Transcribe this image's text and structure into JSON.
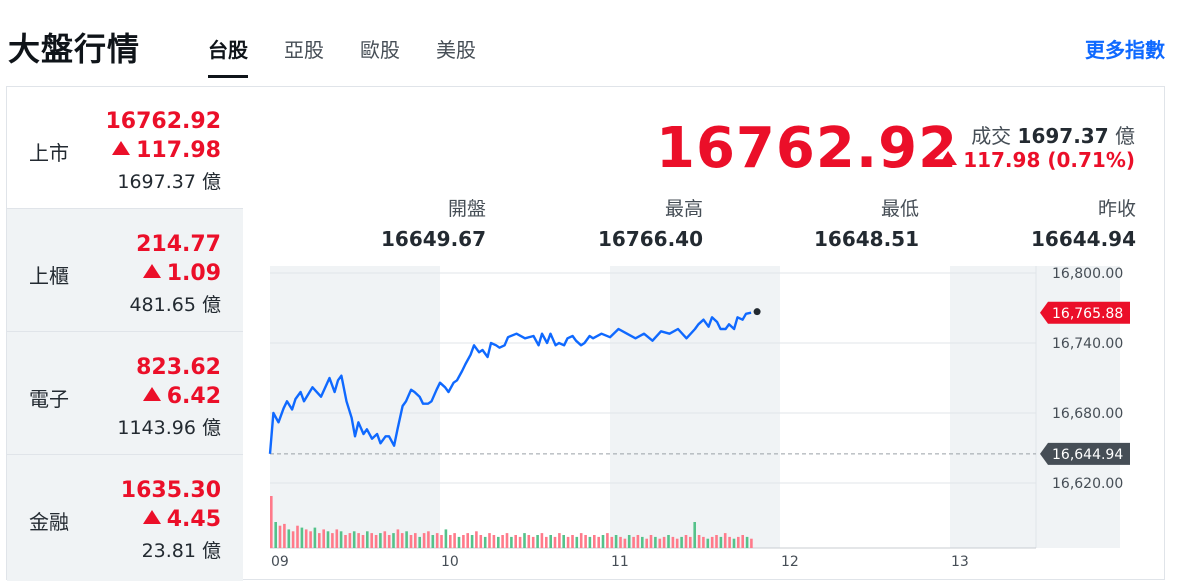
{
  "header": {
    "title": "大盤行情",
    "tabs": [
      "台股",
      "亞股",
      "歐股",
      "美股"
    ],
    "more_label": "更多指數"
  },
  "sidebar": {
    "items": [
      {
        "name": "上市",
        "price": "16762.92",
        "change": "117.98",
        "volume": "1697.37 億"
      },
      {
        "name": "上櫃",
        "price": "214.77",
        "change": "1.09",
        "volume": "481.65 億"
      },
      {
        "name": "電子",
        "price": "823.62",
        "change": "6.42",
        "volume": "1143.96 億"
      },
      {
        "name": "金融",
        "price": "1635.30",
        "change": "4.45",
        "volume": "23.81 億"
      }
    ]
  },
  "main": {
    "price": "16762.92",
    "volume_label": "成交",
    "volume_value": "1697.37",
    "volume_unit": "億",
    "change": "117.98 (0.71%)",
    "stats": [
      {
        "label": "開盤",
        "value": "16649.67"
      },
      {
        "label": "最高",
        "value": "16766.40"
      },
      {
        "label": "最低",
        "value": "16648.51"
      },
      {
        "label": "昨收",
        "value": "16644.94"
      }
    ]
  },
  "colors": {
    "up": "#eb0f29",
    "line": "#0f69ff",
    "prev_close_tag": "#464e56"
  },
  "chart_data": {
    "type": "line",
    "x_ticks": [
      "09",
      "10",
      "11",
      "12",
      "13"
    ],
    "y_ticks": [
      "16,800.00",
      "16,740.00",
      "16,680.00",
      "16,620.00"
    ],
    "ylim": [
      16600,
      16810
    ],
    "current_tag": "16,765.88",
    "prev_close_tag": "16,644.94",
    "current_value": 16765.88,
    "prev_close_value": 16644.94,
    "series": [
      {
        "x": [
          9.0,
          9.02,
          9.05,
          9.08,
          9.1,
          9.13,
          9.15,
          9.18,
          9.2,
          9.25,
          9.3,
          9.35,
          9.38,
          9.4,
          9.42,
          9.45,
          9.48,
          9.5,
          9.52,
          9.55,
          9.57,
          9.6,
          9.63,
          9.65,
          9.68,
          9.7,
          9.73,
          9.75,
          9.78,
          9.8,
          9.83,
          9.85,
          9.88,
          9.9,
          9.93,
          9.95,
          9.98,
          10.0,
          10.03,
          10.05,
          10.08,
          10.1,
          10.13,
          10.15,
          10.18,
          10.2,
          10.23,
          10.25,
          10.28,
          10.3,
          10.33,
          10.35,
          10.38,
          10.4,
          10.45,
          10.5,
          10.55,
          10.58,
          10.6,
          10.63,
          10.65,
          10.68,
          10.7,
          10.73,
          10.75,
          10.78,
          10.8,
          10.83,
          10.85,
          10.88,
          10.9,
          10.95,
          11.0,
          11.05,
          11.1,
          11.15,
          11.2,
          11.25,
          11.3,
          11.35,
          11.4,
          11.45,
          11.5,
          11.52,
          11.55,
          11.58,
          11.6,
          11.63,
          11.65,
          11.68,
          11.7,
          11.73,
          11.75,
          11.78,
          11.8,
          11.83
        ],
        "y": [
          16645,
          16680,
          16672,
          16684,
          16690,
          16683,
          16692,
          16698,
          16690,
          16702,
          16694,
          16710,
          16698,
          16708,
          16712,
          16690,
          16676,
          16660,
          16672,
          16662,
          16666,
          16658,
          16662,
          16654,
          16660,
          16660,
          16652,
          16666,
          16686,
          16690,
          16700,
          16698,
          16694,
          16688,
          16688,
          16690,
          16700,
          16706,
          16702,
          16698,
          16706,
          16708,
          16716,
          16722,
          16730,
          16738,
          16732,
          16734,
          16728,
          16740,
          16738,
          16736,
          16738,
          16745,
          16748,
          16744,
          16746,
          16738,
          16748,
          16740,
          16748,
          16738,
          16740,
          16738,
          16744,
          16746,
          16742,
          16738,
          16740,
          16746,
          16744,
          16748,
          16745,
          16752,
          16748,
          16744,
          16748,
          16742,
          16750,
          16748,
          16752,
          16744,
          16752,
          16756,
          16760,
          16754,
          16762,
          16758,
          16752,
          16752,
          16756,
          16752,
          16762,
          16760,
          16765,
          16766
        ]
      }
    ],
    "volume": [
      28,
      14,
      12,
      13,
      10,
      9,
      12,
      11,
      10,
      9,
      11,
      8,
      10,
      9,
      8,
      10,
      9,
      7,
      8,
      9,
      8,
      7,
      9,
      8,
      7,
      8,
      9,
      7,
      8,
      10,
      8,
      9,
      7,
      8,
      6,
      8,
      9,
      7,
      8,
      7,
      10,
      7,
      8,
      6,
      7,
      8,
      7,
      9,
      7,
      6,
      8,
      7,
      6,
      7,
      8,
      6,
      7,
      6,
      8,
      7,
      6,
      7,
      8,
      6,
      7,
      6,
      8,
      7,
      6,
      7,
      6,
      8,
      7,
      6,
      7,
      6,
      7,
      8,
      6,
      7,
      6,
      5,
      7,
      6,
      7,
      6,
      5,
      7,
      6,
      5,
      6,
      7,
      6,
      5,
      6,
      7,
      6,
      14,
      7,
      6,
      5,
      6,
      7,
      6,
      8,
      6,
      5,
      6,
      7,
      6,
      5
    ]
  }
}
